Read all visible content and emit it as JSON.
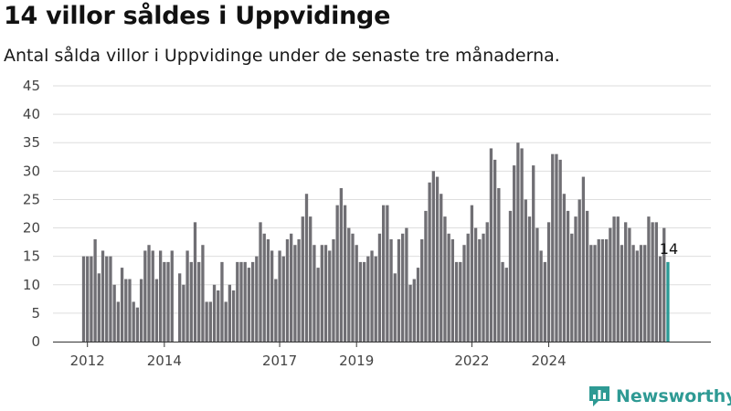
{
  "title": "14 villor såldes i Uppvidinge",
  "subtitle": "Antal sålda villor i Uppvidinge under de senaste tre månaderna.",
  "brand": {
    "name": "Newsworthy",
    "icon": "newsworthy-logo-icon",
    "color": "#2e9a94"
  },
  "chart_data": {
    "type": "bar",
    "x_tick_labels": [
      "2012",
      "2014",
      "2017",
      "2019",
      "2022",
      "2024"
    ],
    "x_tick_indices": [
      1,
      21,
      51,
      71,
      101,
      121
    ],
    "y_ticks": [
      0,
      5,
      10,
      15,
      20,
      25,
      30,
      35,
      40,
      45
    ],
    "ylim": [
      0,
      45
    ],
    "grid": true,
    "bar_color": "#706f74",
    "highlight_color": "#2a9a96",
    "highlight_label": "14",
    "values": [
      15,
      15,
      15,
      18,
      12,
      16,
      15,
      15,
      10,
      7,
      13,
      11,
      11,
      7,
      6,
      11,
      16,
      17,
      16,
      11,
      16,
      14,
      14,
      16,
      0,
      12,
      10,
      16,
      14,
      21,
      14,
      17,
      7,
      7,
      10,
      9,
      14,
      7,
      10,
      9,
      14,
      14,
      14,
      13,
      14,
      15,
      21,
      19,
      18,
      16,
      11,
      16,
      15,
      18,
      19,
      17,
      18,
      22,
      26,
      22,
      17,
      13,
      17,
      17,
      16,
      18,
      24,
      27,
      24,
      20,
      19,
      17,
      14,
      14,
      15,
      16,
      15,
      19,
      24,
      24,
      18,
      12,
      18,
      19,
      20,
      10,
      11,
      13,
      18,
      23,
      28,
      30,
      29,
      26,
      22,
      19,
      18,
      14,
      14,
      17,
      19,
      24,
      20,
      18,
      19,
      21,
      34,
      32,
      27,
      14,
      13,
      23,
      31,
      35,
      34,
      25,
      22,
      31,
      20,
      16,
      14,
      21,
      33,
      33,
      32,
      26,
      23,
      19,
      22,
      25,
      29,
      23,
      17,
      17,
      18,
      18,
      18,
      20,
      22,
      22,
      17,
      21,
      20,
      17,
      16,
      17,
      17,
      22,
      21,
      21,
      15,
      20,
      14
    ]
  }
}
